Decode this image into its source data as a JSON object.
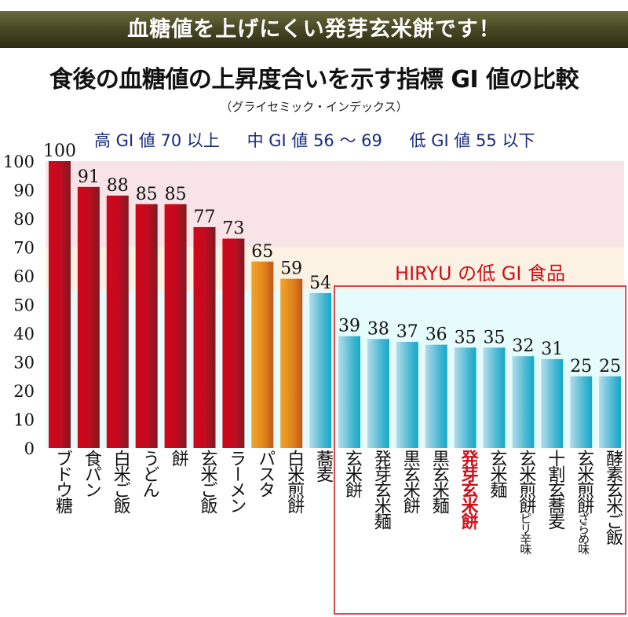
{
  "banner": "血糖値を上げにくい発芽玄米餅です！",
  "chart_data": {
    "type": "bar",
    "title": "食後の血糖値の上昇度合いを示す指標 GI 値の比較",
    "subtitle": "（グライセミック・インデックス）",
    "legend": [
      "高 GI 値 70 以上",
      "中 GI 値 56 〜 69",
      "低 GI 値 55 以下"
    ],
    "xlabel": "",
    "ylabel": "",
    "ylim": [
      0,
      100
    ],
    "yticks": [
      0,
      10,
      20,
      30,
      40,
      50,
      60,
      70,
      80,
      90,
      100
    ],
    "bands": [
      {
        "label": "high",
        "from": 70,
        "to": 100,
        "color": "#f8e4e6"
      },
      {
        "label": "medium",
        "from": 55,
        "to": 70,
        "color": "#fbf2e4"
      },
      {
        "label": "low",
        "from": 0,
        "to": 55,
        "color": "#e6fbfb"
      }
    ],
    "categories": [
      {
        "main": "ブドウ糖",
        "sub": ""
      },
      {
        "main": "食パン",
        "sub": ""
      },
      {
        "main": "白米ご飯",
        "sub": ""
      },
      {
        "main": "うどん",
        "sub": ""
      },
      {
        "main": "餅",
        "sub": ""
      },
      {
        "main": "玄米ご飯",
        "sub": ""
      },
      {
        "main": "ラーメン",
        "sub": ""
      },
      {
        "main": "パスタ",
        "sub": ""
      },
      {
        "main": "白米煎餅",
        "sub": ""
      },
      {
        "main": "蕎麦",
        "sub": ""
      },
      {
        "main": "玄米餅",
        "sub": ""
      },
      {
        "main": "発芽玄米麺",
        "sub": ""
      },
      {
        "main": "黒玄米餅",
        "sub": ""
      },
      {
        "main": "黒玄米麺",
        "sub": ""
      },
      {
        "main": "発芽玄米餅",
        "sub": ""
      },
      {
        "main": "玄米麺",
        "sub": ""
      },
      {
        "main": "玄米煎餅",
        "sub": "ピリ辛味"
      },
      {
        "main": "十割玄蕎麦",
        "sub": ""
      },
      {
        "main": "玄米煎餅",
        "sub": "ざらめ味"
      },
      {
        "main": "酵素玄米ご飯",
        "sub": ""
      }
    ],
    "values": [
      100,
      91,
      88,
      85,
      85,
      77,
      73,
      65,
      59,
      54,
      39,
      38,
      37,
      36,
      35,
      35,
      32,
      31,
      25,
      25
    ],
    "levels": [
      "high",
      "high",
      "high",
      "high",
      "high",
      "high",
      "high",
      "medium",
      "medium",
      "low",
      "low",
      "low",
      "low",
      "low",
      "low",
      "low",
      "low",
      "low",
      "low",
      "low"
    ],
    "highlight_index": 14,
    "group_box": {
      "title": "HIRYU の低 GI 食品",
      "from_index": 10,
      "to_index": 19
    },
    "colors": {
      "high": "#c50d1e",
      "medium": "#e88a1e",
      "low": "#2bb2cc",
      "highlight": "#d0101a",
      "group_box": "#cc1018"
    }
  }
}
